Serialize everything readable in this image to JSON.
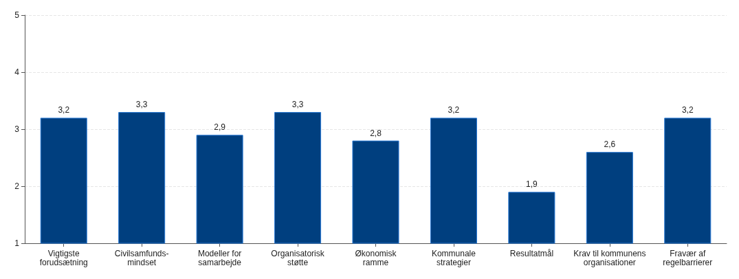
{
  "chart_data": {
    "type": "bar",
    "categories": [
      "Vigtigste\nforudsætning",
      "Civilsamfunds-\nmindset",
      "Modeller for\nsamarbejde",
      "Organisatorisk\nstøtte",
      "Økonomisk\nramme",
      "Kommunale\nstrategier",
      "Resultatmål",
      "Krav til kommunens\norganisationer",
      "Fravær af\nregelbarrierer"
    ],
    "values": [
      3.2,
      3.3,
      2.9,
      3.3,
      2.8,
      3.2,
      1.9,
      2.6,
      3.2
    ],
    "value_labels": [
      "3,2",
      "3,3",
      "2,9",
      "3,3",
      "2,8",
      "3,2",
      "1,9",
      "2,6",
      "3,2"
    ],
    "color": "#003f7f",
    "ylim": [
      1,
      5
    ],
    "yticks": [
      1,
      2,
      3,
      4,
      5
    ],
    "grid": "y"
  }
}
